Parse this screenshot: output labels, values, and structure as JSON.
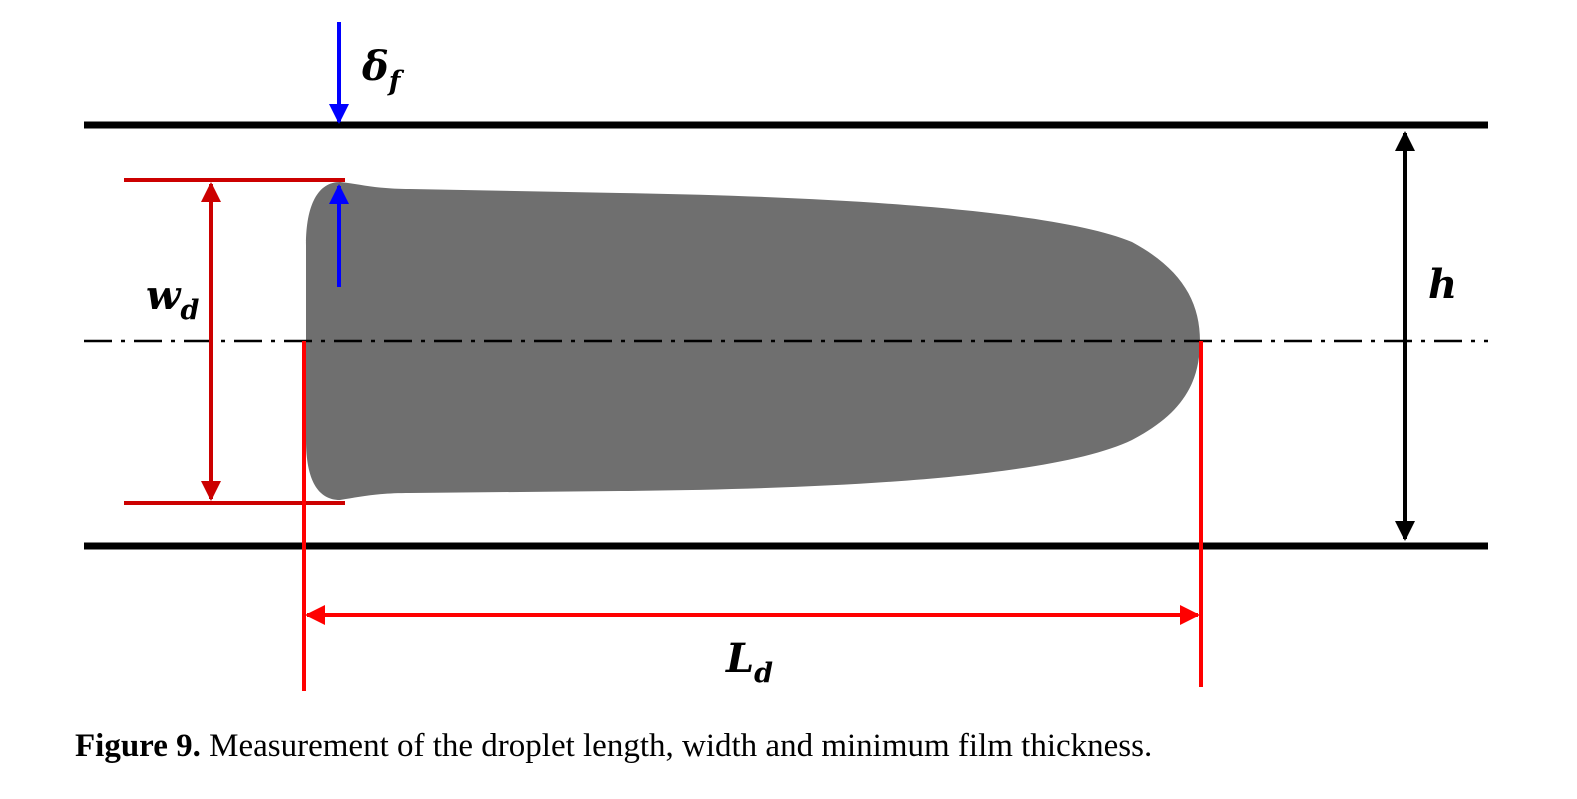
{
  "labels": {
    "film_thickness": {
      "main": "δ",
      "sub": "f"
    },
    "droplet_width": {
      "main": "w",
      "sub": "d"
    },
    "channel_height": {
      "main": "h"
    },
    "droplet_length": {
      "main": "L",
      "sub": "d"
    }
  },
  "caption": {
    "label": "Figure 9.",
    "text": " Measurement of the droplet length, width and minimum film thickness."
  },
  "colors": {
    "wall": "#000000",
    "droplet": "#6f6f6f",
    "width_dim": "#cc0000",
    "length_dim": "#ff0000",
    "film_arrow": "#0000ff",
    "height_dim": "#000000"
  }
}
